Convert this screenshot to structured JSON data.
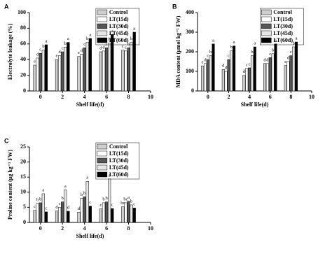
{
  "chart_data": [
    {
      "type": "bar",
      "panel": "A",
      "ylabel": "Electrolyte leakage (%)",
      "xlabel": "Shelf life(d)",
      "x": [
        0,
        2,
        4,
        6,
        8
      ],
      "xlim": [
        -1,
        10
      ],
      "xticks": [
        0,
        2,
        4,
        6,
        8,
        10
      ],
      "ylim": [
        0,
        100
      ],
      "yticks": [
        0,
        20,
        40,
        60,
        80,
        100
      ],
      "series": [
        {
          "name": "Control",
          "color": "#cfcfcf",
          "values": [
            33,
            40,
            44,
            50,
            52
          ],
          "letters": [
            "e",
            "e",
            "e",
            "d",
            "c"
          ]
        },
        {
          "name": "LT(15d)",
          "color": "#ffffff",
          "values": [
            42,
            45,
            47,
            51,
            51
          ],
          "letters": [
            "d",
            "d",
            "d",
            "d",
            "c"
          ]
        },
        {
          "name": "LT(30d)",
          "color": "#555555",
          "values": [
            48,
            50,
            55,
            55,
            55
          ],
          "letters": [
            "c",
            "c",
            "c",
            "c",
            "b"
          ]
        },
        {
          "name": "LT(45d)",
          "color": "#e6e6e6",
          "values": [
            52,
            56,
            62,
            61,
            62
          ],
          "letters": [
            "b",
            "b",
            "b",
            "b",
            "b"
          ]
        },
        {
          "name": "LT(60d)",
          "color": "#000000",
          "values": [
            59,
            62,
            67,
            72,
            75
          ],
          "letters": [
            "a",
            "a",
            "a",
            "a",
            "a"
          ]
        }
      ]
    },
    {
      "type": "bar",
      "panel": "B",
      "ylabel": "MDA content (μmol kg⁻¹ FW)",
      "xlabel": "Shelf life(d)",
      "x": [
        0,
        2,
        4,
        6,
        8
      ],
      "xlim": [
        -1,
        10
      ],
      "xticks": [
        0,
        2,
        4,
        6,
        8,
        10
      ],
      "ylim": [
        0,
        400
      ],
      "yticks": [
        0,
        100,
        200,
        300,
        400
      ],
      "series": [
        {
          "name": "Control",
          "color": "#cfcfcf",
          "values": [
            128,
            110,
            80,
            140,
            130
          ],
          "letters": [
            "e",
            "d",
            "d",
            "d",
            "e"
          ]
        },
        {
          "name": "LT(15d)",
          "color": "#ffffff",
          "values": [
            140,
            100,
            115,
            140,
            150
          ],
          "letters": [
            "d",
            "d",
            "c",
            "d",
            "d"
          ]
        },
        {
          "name": "LT(30d)",
          "color": "#555555",
          "values": [
            160,
            160,
            118,
            170,
            180
          ],
          "letters": [
            "c",
            "c",
            "c",
            "c",
            "c"
          ]
        },
        {
          "name": "LT(45d)",
          "color": "#e6e6e6",
          "values": [
            180,
            205,
            180,
            190,
            225
          ],
          "letters": [
            "b",
            "b",
            "b",
            "b",
            "b"
          ]
        },
        {
          "name": "LT(60d)",
          "color": "#000000",
          "values": [
            240,
            230,
            225,
            240,
            250
          ],
          "letters": [
            "a",
            "a",
            "a",
            "a",
            "a"
          ]
        }
      ]
    },
    {
      "type": "bar",
      "panel": "C",
      "ylabel": "Proline content (μg kg⁻¹ FW)",
      "xlabel": "Shelf life(d)",
      "x": [
        0,
        2,
        4,
        6,
        8
      ],
      "xlim": [
        -1,
        10
      ],
      "xticks": [
        0,
        2,
        4,
        6,
        8,
        10
      ],
      "ylim": [
        0,
        25
      ],
      "yticks": [
        0,
        5,
        10,
        15,
        20,
        25
      ],
      "series": [
        {
          "name": "Control",
          "color": "#cfcfcf",
          "values": [
            4.0,
            3.8,
            3.4,
            4.5,
            5.2
          ],
          "letters": [
            "c",
            "d",
            "d",
            "c",
            "bc"
          ]
        },
        {
          "name": "LT(15d)",
          "color": "#ffffff",
          "values": [
            6.3,
            5.0,
            8.0,
            6.5,
            6.5
          ],
          "letters": [
            "b",
            "c",
            "b",
            "b",
            "bc"
          ]
        },
        {
          "name": "LT(30d)",
          "color": "#555555",
          "values": [
            6.5,
            6.8,
            8.5,
            6.8,
            7.0
          ],
          "letters": [
            "b",
            "b",
            "b",
            "b",
            "a"
          ]
        },
        {
          "name": "LT(45d)",
          "color": "#e6e6e6",
          "values": [
            9.5,
            10.8,
            13.6,
            14.4,
            5.8
          ],
          "letters": [
            "a",
            "a",
            "a",
            "a",
            "b"
          ]
        },
        {
          "name": "LT(60d)",
          "color": "#000000",
          "values": [
            3.5,
            3.7,
            5.4,
            4.6,
            4.8
          ],
          "letters": [
            "c",
            "d",
            "c",
            "c",
            "c"
          ]
        }
      ]
    }
  ]
}
